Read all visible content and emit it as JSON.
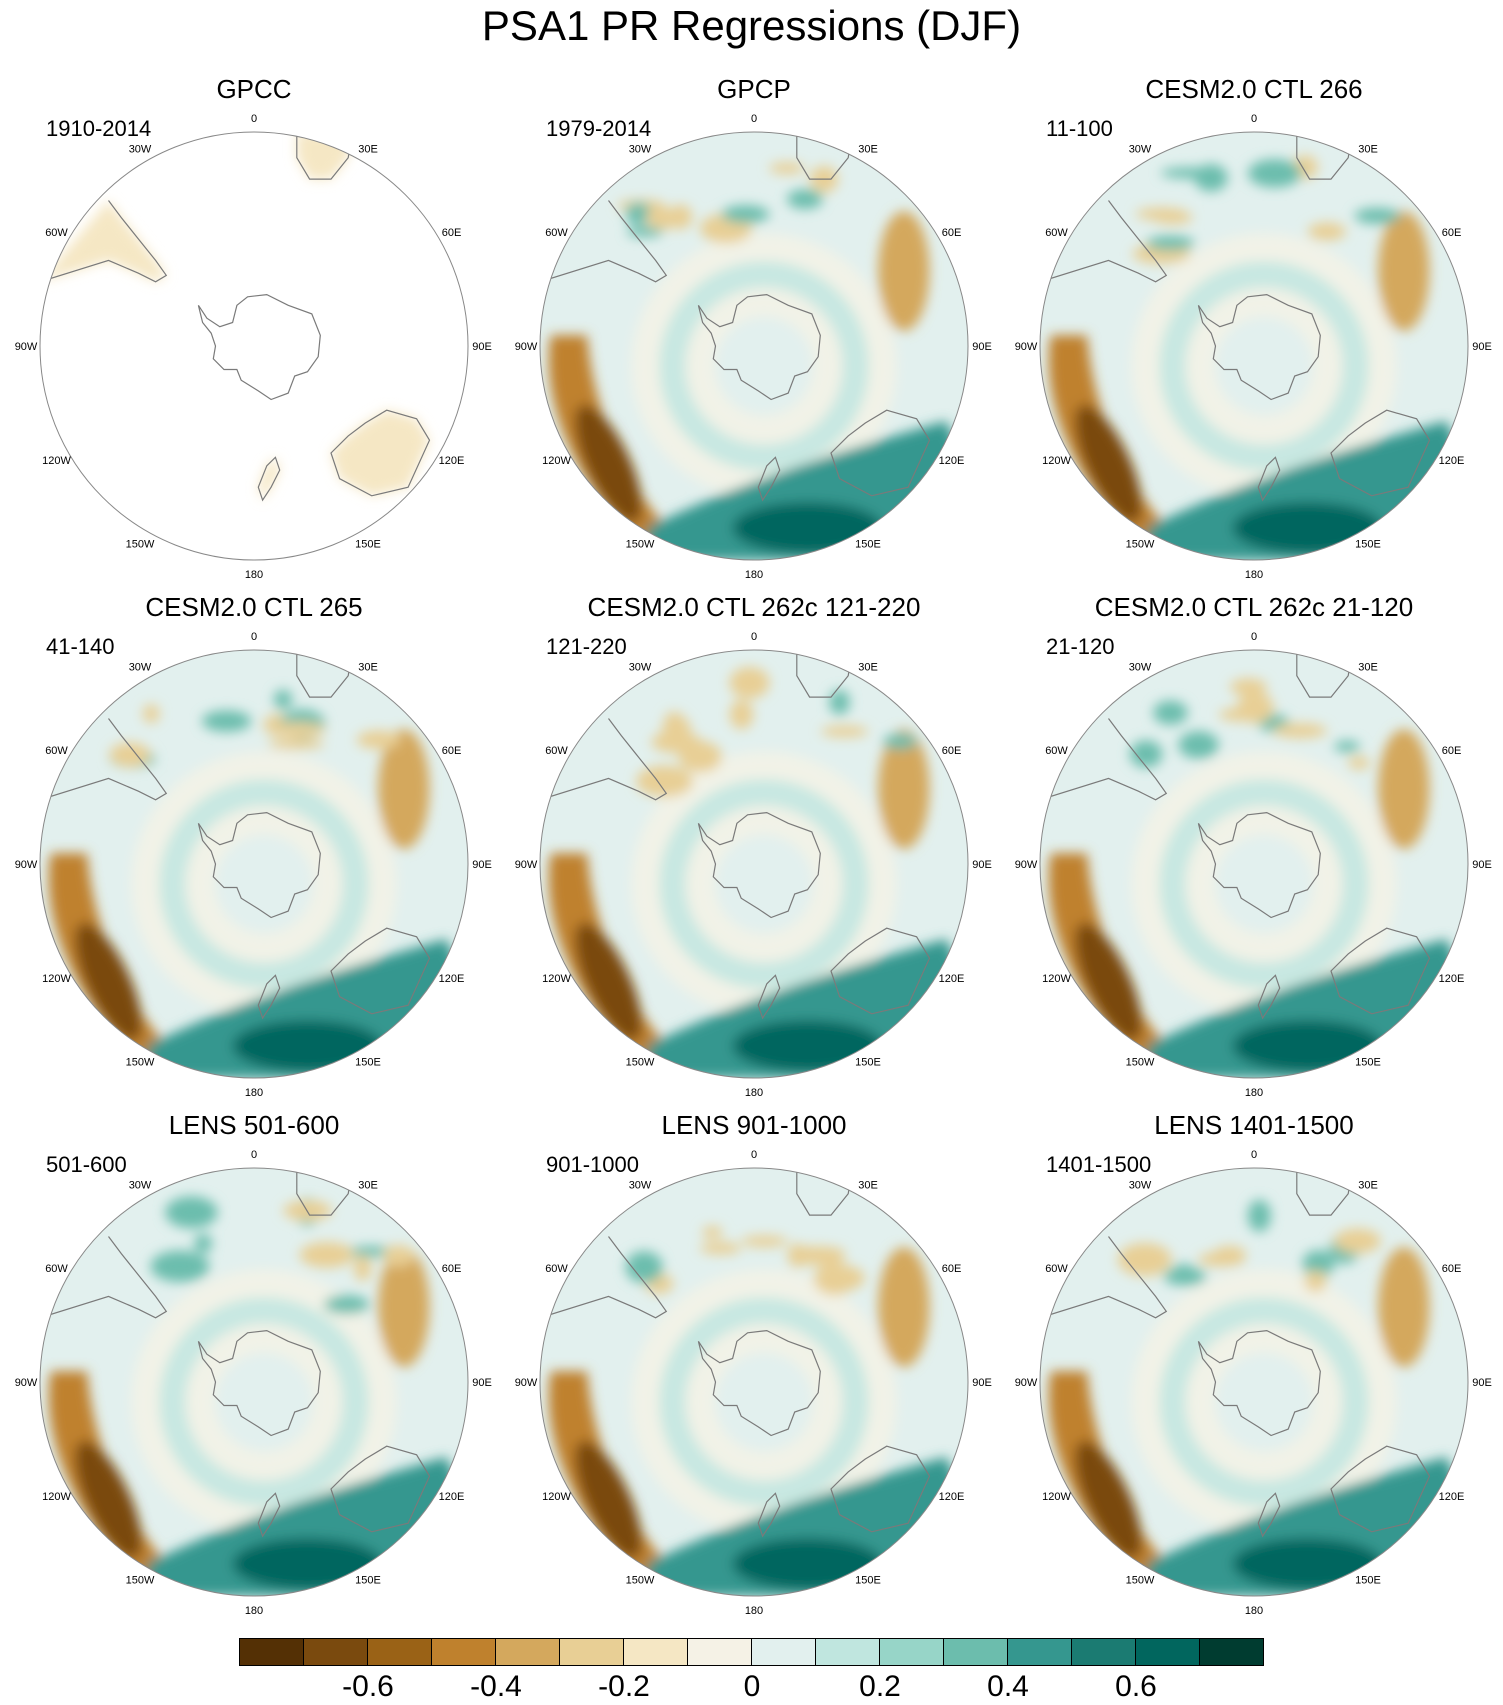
{
  "title": "PSA1 PR Regressions (DJF)",
  "longitude_labels": [
    "0",
    "30E",
    "60E",
    "90E",
    "120E",
    "150E",
    "180",
    "150W",
    "120W",
    "90W",
    "60W",
    "30W"
  ],
  "panels": [
    {
      "title": "GPCC",
      "period": "1910-2014",
      "style": "land-only"
    },
    {
      "title": "GPCP",
      "period": "1979-2014",
      "style": "full"
    },
    {
      "title": "CESM2.0 CTL 266",
      "period": "11-100",
      "style": "full"
    },
    {
      "title": "CESM2.0 CTL 265",
      "period": "41-140",
      "style": "full"
    },
    {
      "title": "CESM2.0 CTL 262c 121-220",
      "period": "121-220",
      "style": "full"
    },
    {
      "title": "CESM2.0 CTL 262c 21-120",
      "period": "21-120",
      "style": "full"
    },
    {
      "title": "LENS 501-600",
      "period": "501-600",
      "style": "full"
    },
    {
      "title": "LENS 901-1000",
      "period": "901-1000",
      "style": "full"
    },
    {
      "title": "LENS 1401-1500",
      "period": "1401-1500",
      "style": "full"
    }
  ],
  "colorbar": {
    "colors": [
      "#543005",
      "#7a4a0e",
      "#9a6216",
      "#bf812d",
      "#d4a85d",
      "#e8cf95",
      "#f5e7c4",
      "#f5f2e6",
      "#e2f0ee",
      "#c0e6df",
      "#97d5c8",
      "#6cbdad",
      "#35978f",
      "#1b7b72",
      "#01665e",
      "#003c30"
    ],
    "tick_labels": [
      "-0.6",
      "-0.4",
      "-0.2",
      "0",
      "0.2",
      "0.4",
      "0.6"
    ],
    "tick_values": [
      -0.6,
      -0.4,
      -0.2,
      0,
      0.2,
      0.4,
      0.6
    ]
  }
}
